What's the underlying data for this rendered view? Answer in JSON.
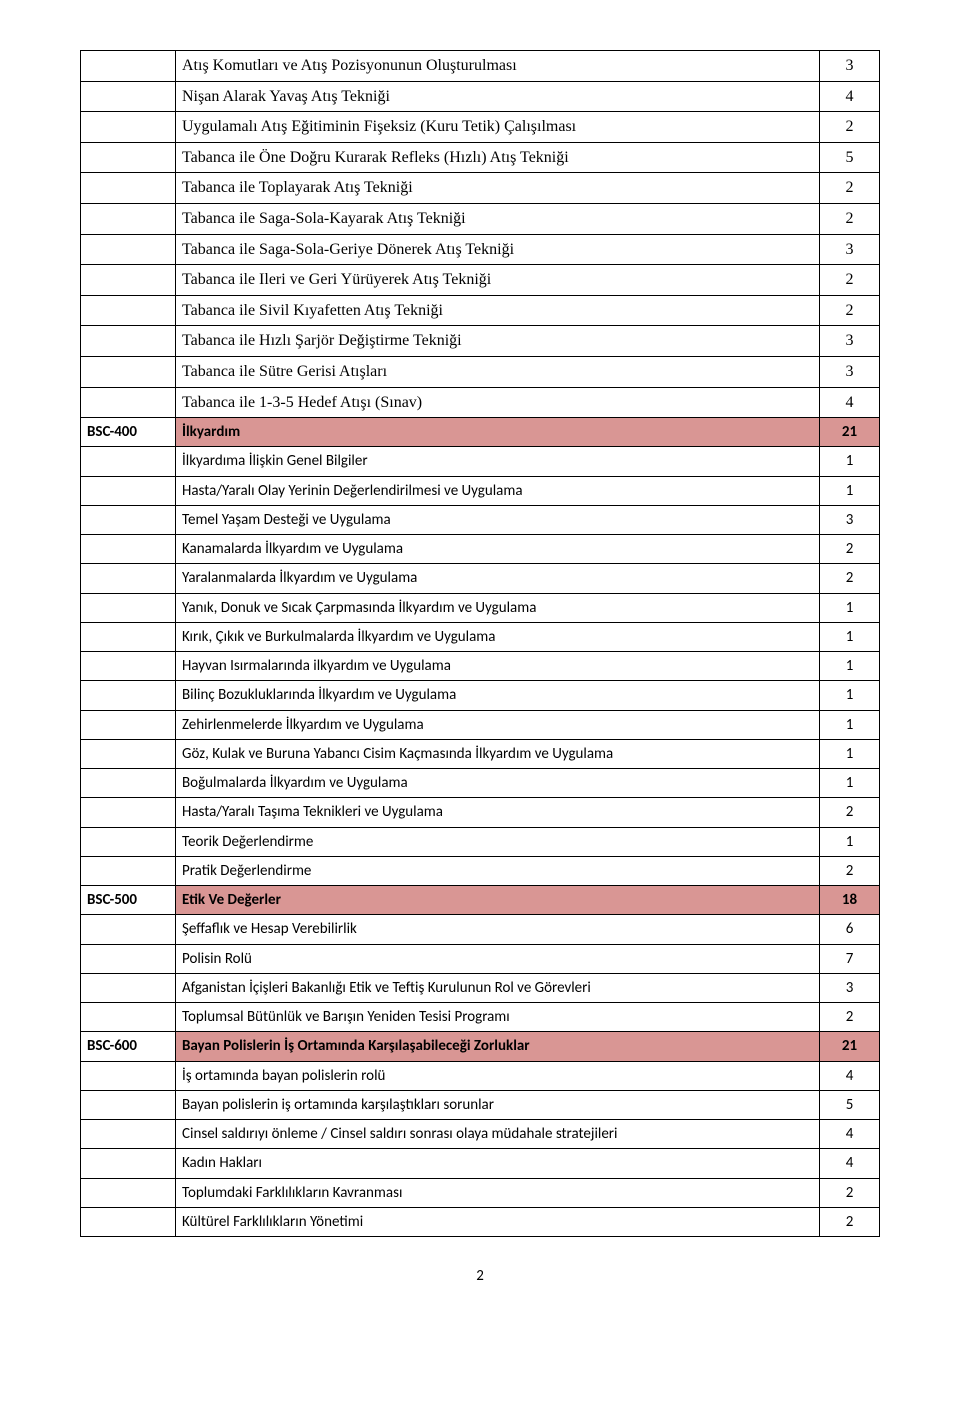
{
  "page_number": "2",
  "colors": {
    "section_bg": "#d99694",
    "border": "#000000",
    "text": "#000000"
  },
  "rows": [
    {
      "code": "",
      "label": "Atış Komutları ve Atış Pozisyonunun Oluşturulması",
      "value": "3",
      "serif": true
    },
    {
      "code": "",
      "label": "Nişan Alarak Yavaş Atış Tekniği",
      "value": "4",
      "serif": true
    },
    {
      "code": "",
      "label": "Uygulamalı Atış Eğitiminin Fişeksiz (Kuru Tetik) Çalışılması",
      "value": "2",
      "serif": true
    },
    {
      "code": "",
      "label": "Tabanca ile Öne Doğru Kurarak Refleks (Hızlı) Atış Tekniği",
      "value": "5",
      "serif": true
    },
    {
      "code": "",
      "label": "Tabanca ile Toplayarak Atış Tekniği",
      "value": "2",
      "serif": true
    },
    {
      "code": "",
      "label": "Tabanca ile Saga-Sola-Kayarak Atış Tekniği",
      "value": "2",
      "serif": true
    },
    {
      "code": "",
      "label": "Tabanca ile Saga-Sola-Geriye Dönerek Atış Tekniği",
      "value": "3",
      "serif": true
    },
    {
      "code": "",
      "label": "Tabanca ile Ileri ve Geri Yürüyerek Atış Tekniği",
      "value": "2",
      "serif": true
    },
    {
      "code": "",
      "label": "Tabanca ile Sivil Kıyafetten Atış Tekniği",
      "value": "2",
      "serif": true
    },
    {
      "code": "",
      "label": "Tabanca ile Hızlı Şarjör Değiştirme Tekniği",
      "value": "3",
      "serif": true
    },
    {
      "code": "",
      "label": "Tabanca ile Sütre Gerisi Atışları",
      "value": "3",
      "serif": true
    },
    {
      "code": "",
      "label": "Tabanca ile 1-3-5 Hedef Atışı (Sınav)",
      "value": "4",
      "serif": true
    },
    {
      "code": "BSC-400",
      "label": "İlkyardım",
      "value": "21",
      "section": true
    },
    {
      "code": "",
      "label": "İlkyardıma İlişkin Genel Bilgiler",
      "value": "1"
    },
    {
      "code": "",
      "label": "Hasta/Yaralı Olay Yerinin Değerlendirilmesi ve Uygulama",
      "value": "1"
    },
    {
      "code": "",
      "label": "Temel Yaşam Desteği ve Uygulama",
      "value": "3"
    },
    {
      "code": "",
      "label": "Kanamalarda İlkyardım ve Uygulama",
      "value": "2"
    },
    {
      "code": "",
      "label": "Yaralanmalarda İlkyardım ve Uygulama",
      "value": "2"
    },
    {
      "code": "",
      "label": "Yanık, Donuk ve Sıcak Çarpmasında İlkyardım ve Uygulama",
      "value": "1"
    },
    {
      "code": "",
      "label": "Kırık, Çıkık ve Burkulmalarda İlkyardım ve Uygulama",
      "value": "1"
    },
    {
      "code": "",
      "label": "Hayvan Isırmalarında ilkyardım ve Uygulama",
      "value": "1"
    },
    {
      "code": "",
      "label": "Bilinç Bozukluklarında İlkyardım ve Uygulama",
      "value": "1"
    },
    {
      "code": "",
      "label": "Zehirlenmelerde İlkyardım ve Uygulama",
      "value": "1"
    },
    {
      "code": "",
      "label": "Göz, Kulak ve Buruna Yabancı Cisim Kaçmasında İlkyardım ve Uygulama",
      "value": "1"
    },
    {
      "code": "",
      "label": "Boğulmalarda İlkyardım ve Uygulama",
      "value": "1"
    },
    {
      "code": "",
      "label": "Hasta/Yaralı Taşıma Teknikleri ve Uygulama",
      "value": "2"
    },
    {
      "code": "",
      "label": "Teorik Değerlendirme",
      "value": "1"
    },
    {
      "code": "",
      "label": "Pratik Değerlendirme",
      "value": "2"
    },
    {
      "code": "BSC-500",
      "label": "Etik Ve Değerler",
      "value": "18",
      "section": true
    },
    {
      "code": "",
      "label": "Şeffaflık ve Hesap Verebilirlik",
      "value": "6"
    },
    {
      "code": "",
      "label": "Polisin Rolü",
      "value": "7"
    },
    {
      "code": "",
      "label": "Afganistan İçişleri Bakanlığı Etik ve Teftiş Kurulunun Rol ve Görevleri",
      "value": "3"
    },
    {
      "code": "",
      "label": "Toplumsal Bütünlük ve Barışın Yeniden Tesisi Programı",
      "value": "2"
    },
    {
      "code": "BSC-600",
      "label": "Bayan Polislerin İş Ortamında Karşılaşabileceği Zorluklar",
      "value": "21",
      "section": true
    },
    {
      "code": "",
      "label": "İş ortamında bayan polislerin rolü",
      "value": "4"
    },
    {
      "code": "",
      "label": "Bayan polislerin iş ortamında karşılaştıkları sorunlar",
      "value": "5"
    },
    {
      "code": "",
      "label": "Cinsel saldırıyı önleme / Cinsel saldırı sonrası olaya müdahale stratejileri",
      "value": "4"
    },
    {
      "code": "",
      "label": "Kadın Hakları",
      "value": "4"
    },
    {
      "code": "",
      "label": "Toplumdaki Farklılıkların Kavranması",
      "value": "2"
    },
    {
      "code": "",
      "label": "Kültürel Farklılıkların Yönetimi",
      "value": "2"
    }
  ]
}
